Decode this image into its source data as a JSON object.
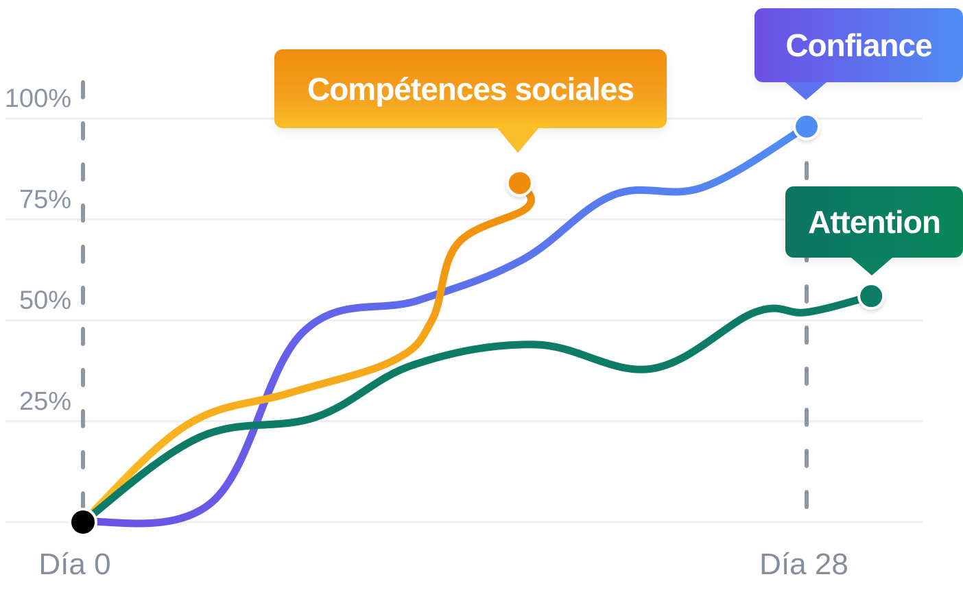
{
  "chart_data": {
    "type": "line",
    "title": "",
    "xlabel": "",
    "ylabel": "",
    "x_ticks": [
      {
        "x": 0,
        "label": "Día 0"
      },
      {
        "x": 28,
        "label": "Día 28"
      }
    ],
    "y_ticks": [
      {
        "y": 25,
        "label": "25%"
      },
      {
        "y": 50,
        "label": "50%"
      },
      {
        "y": 75,
        "label": "75%"
      },
      {
        "y": 100,
        "label": "100%"
      }
    ],
    "xlim": [
      0,
      32
    ],
    "ylim": [
      0,
      100
    ],
    "grid": true,
    "series": [
      {
        "name": "Compétences sociales",
        "color_start": "#fbbf24",
        "color_end": "#f08c0c",
        "points": [
          [
            0,
            0
          ],
          [
            4,
            24
          ],
          [
            8,
            32
          ],
          [
            12,
            40
          ],
          [
            13.5,
            50
          ],
          [
            14.5,
            69
          ],
          [
            17.2,
            78
          ],
          [
            16.9,
            84
          ]
        ]
      },
      {
        "name": "Confiance",
        "color_start": "#6d4fe6",
        "color_end": "#4f8df3",
        "points": [
          [
            0,
            0
          ],
          [
            5,
            5
          ],
          [
            8.5,
            47
          ],
          [
            13,
            55
          ],
          [
            17,
            65
          ],
          [
            20.5,
            81
          ],
          [
            24,
            83
          ],
          [
            28,
            98
          ]
        ]
      },
      {
        "name": "Attention",
        "color_start": "#0c7c66",
        "color_end": "#0c7c66",
        "points": [
          [
            0,
            0
          ],
          [
            4.5,
            21
          ],
          [
            9,
            26
          ],
          [
            12.8,
            39
          ],
          [
            17.5,
            44
          ],
          [
            22,
            38
          ],
          [
            26,
            52
          ],
          [
            28,
            52
          ],
          [
            30.5,
            56
          ]
        ]
      }
    ]
  }
}
